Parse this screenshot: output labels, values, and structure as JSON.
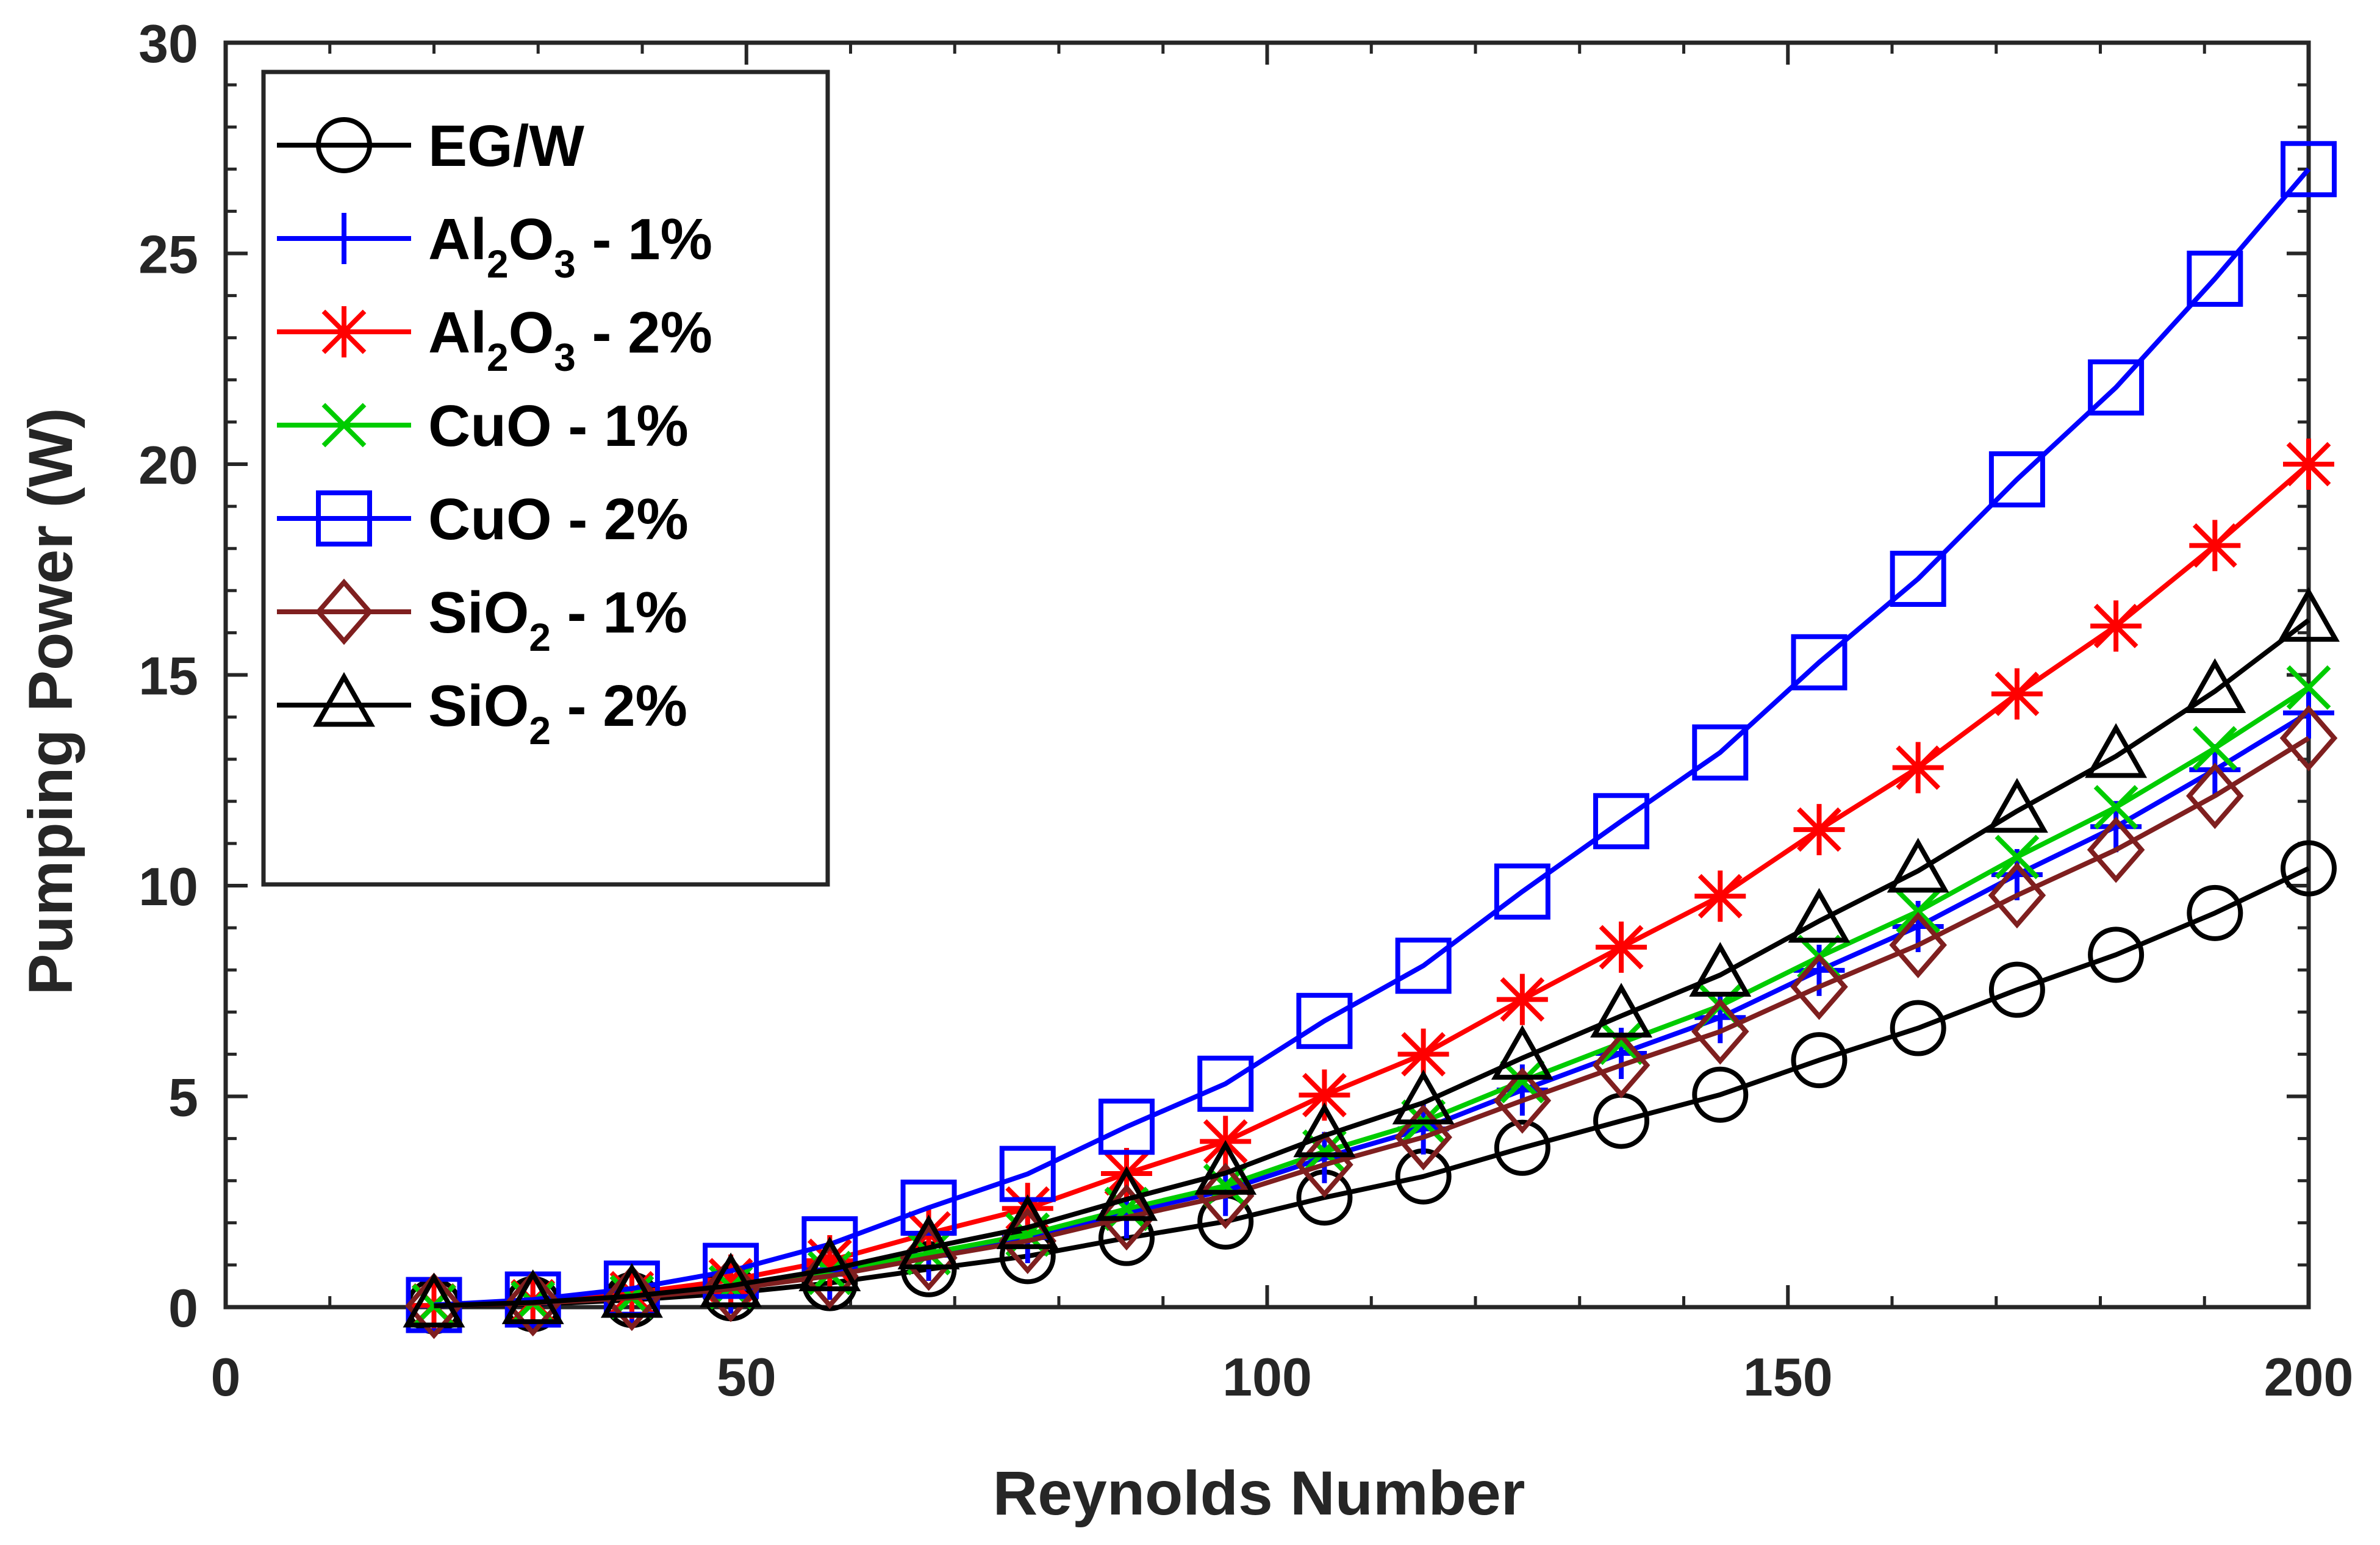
{
  "chart_data": {
    "type": "line",
    "title": "",
    "xlabel": "Reynolds Number",
    "ylabel": "Pumping Power (W)",
    "xlim": [
      0,
      200
    ],
    "ylim": [
      0,
      30
    ],
    "xticks": [
      0,
      50,
      100,
      150,
      200
    ],
    "xtick_labels": [
      "0",
      "50",
      "100",
      "150",
      "200"
    ],
    "yticks": [
      0,
      5,
      10,
      15,
      20,
      25,
      30
    ],
    "ytick_labels": [
      "0",
      "5",
      "10",
      "15",
      "20",
      "25",
      "30"
    ],
    "grid": false,
    "legend_position": "top-left",
    "x": [
      20,
      29.5,
      39,
      48.5,
      58,
      67.5,
      77,
      86.5,
      96,
      105.5,
      115,
      124.5,
      134,
      143.5,
      153,
      162.5,
      172,
      181.5,
      191,
      200
    ],
    "series": [
      {
        "name": "EG/W",
        "legend": {
          "main": "EG/W",
          "sub": "",
          "tail": ""
        },
        "color": "#000000",
        "marker": "circle",
        "values": [
          0.02,
          0.07,
          0.17,
          0.33,
          0.57,
          0.9,
          1.21,
          1.64,
          2.03,
          2.6,
          3.1,
          3.78,
          4.42,
          5.04,
          5.86,
          6.62,
          7.53,
          8.36,
          9.35,
          10.41
        ]
      },
      {
        "name": "Al2O3 - 1%",
        "legend": {
          "main": "Al",
          "sub": "2",
          "mid": "O",
          "sub2": "3",
          "tail": " - 1%"
        },
        "color": "#0000ff",
        "marker": "plus",
        "values": [
          0.03,
          0.1,
          0.23,
          0.45,
          0.78,
          1.23,
          1.65,
          2.24,
          2.77,
          3.55,
          4.23,
          5.15,
          6.02,
          6.87,
          7.99,
          9.03,
          10.26,
          11.4,
          12.75,
          14.1
        ]
      },
      {
        "name": "Al2O3 - 2%",
        "legend": {
          "main": "Al",
          "sub": "2",
          "mid": "O",
          "sub2": "3",
          "tail": " - 2%"
        },
        "color": "#ff0000",
        "marker": "asterisk",
        "values": [
          0.04,
          0.14,
          0.33,
          0.64,
          1.1,
          1.75,
          2.34,
          3.17,
          3.93,
          5.03,
          6.0,
          7.3,
          8.54,
          9.75,
          11.33,
          12.8,
          14.55,
          16.16,
          18.07,
          20.0
        ]
      },
      {
        "name": "CuO - 1%",
        "legend": {
          "main": "CuO - 1%",
          "sub": "",
          "tail": ""
        },
        "color": "#00cc00",
        "marker": "x",
        "values": [
          0.03,
          0.1,
          0.24,
          0.47,
          0.81,
          1.28,
          1.72,
          2.33,
          2.88,
          3.69,
          4.4,
          5.36,
          6.27,
          7.15,
          8.31,
          9.39,
          10.68,
          11.86,
          13.26,
          14.7
        ]
      },
      {
        "name": "CuO - 2%",
        "legend": {
          "main": "CuO - 2%",
          "sub": "",
          "tail": ""
        },
        "color": "#0000ff",
        "marker": "square",
        "values": [
          0.05,
          0.18,
          0.44,
          0.86,
          1.49,
          2.36,
          3.16,
          4.28,
          5.3,
          6.79,
          8.1,
          9.86,
          11.53,
          13.16,
          15.3,
          17.28,
          19.64,
          21.82,
          24.4,
          27.0
        ]
      },
      {
        "name": "SiO2 - 1%",
        "legend": {
          "main": "SiO",
          "sub": "2",
          "tail": " - 1%"
        },
        "color": "#7f1f1f",
        "marker": "diamond",
        "values": [
          0.03,
          0.09,
          0.22,
          0.43,
          0.74,
          1.17,
          1.57,
          2.13,
          2.64,
          3.38,
          4.03,
          4.9,
          5.74,
          6.54,
          7.6,
          8.59,
          9.77,
          10.85,
          12.13,
          13.5
        ]
      },
      {
        "name": "SiO2 - 2%",
        "legend": {
          "main": "SiO",
          "sub": "2",
          "tail": " - 2%"
        },
        "color": "#000000",
        "marker": "triangle",
        "values": [
          0.03,
          0.11,
          0.26,
          0.51,
          0.89,
          1.41,
          1.89,
          2.56,
          3.18,
          4.07,
          4.85,
          5.91,
          6.91,
          7.88,
          9.16,
          10.35,
          11.77,
          13.07,
          14.61,
          16.3
        ]
      }
    ]
  }
}
